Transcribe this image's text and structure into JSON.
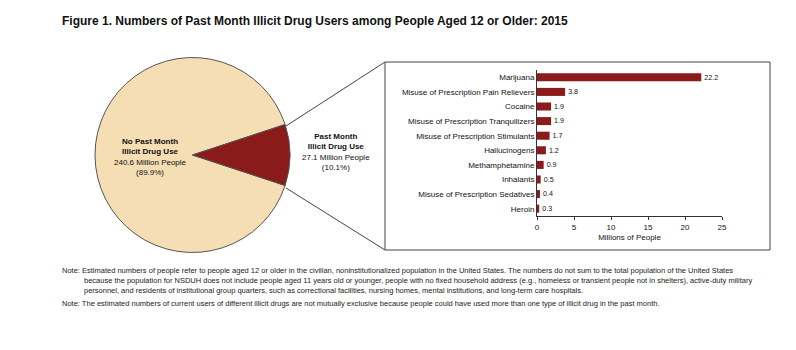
{
  "title": "Figure 1. Numbers of Past Month Illicit Drug Users among People Aged 12 or Older: 2015",
  "notes": [
    "Note: Estimated numbers of people refer to people aged 12 or older in the civilian, noninstitutionalized population in the United States. The numbers do not sum to the total population of the United States because the population for NSDUH does not include people aged 11 years old or younger, people with no fixed household address (e.g., homeless or transient people not in shelters), active-duty military personnel, and residents of institutional group quarters, such as correctional facilities, nursing homes, mental institutions, and long-term care hospitals.",
    "Note: The estimated numbers of current users of different illicit drugs are not mutually exclusive because people could have used more than one type of illicit drug in the past month."
  ],
  "chart_data": [
    {
      "type": "pie",
      "categories": [
        "No Past Month\nIllicit Drug Use",
        "Past Month\nIllicit Drug Use"
      ],
      "values": [
        240.6,
        27.1
      ],
      "value_labels": [
        "240.6 Million People\n(89.9%)",
        "27.1 Million People\n(10.1%)"
      ],
      "colors": [
        "#f5deb3",
        "#8b1a1a"
      ],
      "data_labels": true
    },
    {
      "type": "bar",
      "orientation": "horizontal",
      "categories": [
        "Marijuana",
        "Misuse of Prescription Pain Relievers",
        "Cocaine",
        "Misuse of Prescription Tranquilizers",
        "Misuse of Prescription Stimulants",
        "Hallucinogens",
        "Methamphetamine",
        "Inhalants",
        "Misuse of Prescription Sedatives",
        "Heroin"
      ],
      "values": [
        22.2,
        3.8,
        1.9,
        1.9,
        1.7,
        1.2,
        0.9,
        0.5,
        0.4,
        0.3
      ],
      "color": "#8b1a1a",
      "xlabel": "Millions of People",
      "xlim": [
        0,
        25
      ],
      "xticks": [
        0,
        5,
        10,
        15,
        20,
        25
      ],
      "grid": false,
      "data_labels": true
    }
  ]
}
